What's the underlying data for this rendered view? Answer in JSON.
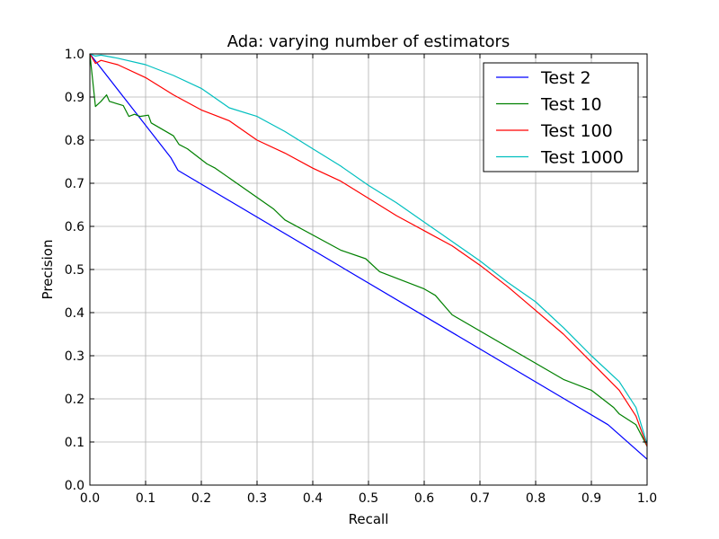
{
  "chart_data": {
    "type": "line",
    "title": "Ada: varying number of estimators",
    "xlabel": "Recall",
    "ylabel": "Precision",
    "xlim": [
      0.0,
      1.0
    ],
    "ylim": [
      0.0,
      1.0
    ],
    "xticks": [
      "0.0",
      "0.1",
      "0.2",
      "0.3",
      "0.4",
      "0.5",
      "0.6",
      "0.7",
      "0.8",
      "0.9",
      "1.0"
    ],
    "yticks": [
      "0.0",
      "0.1",
      "0.2",
      "0.3",
      "0.4",
      "0.5",
      "0.6",
      "0.7",
      "0.8",
      "0.9",
      "1.0"
    ],
    "grid": true,
    "legend_position": "top-right",
    "series": [
      {
        "name": "Test 2",
        "color": "#0000ff",
        "x": [
          0.0,
          0.145,
          0.158,
          0.93,
          1.0
        ],
        "y": [
          1.0,
          0.76,
          0.73,
          0.14,
          0.06
        ]
      },
      {
        "name": "Test 10",
        "color": "#008000",
        "x": [
          0.0,
          0.01,
          0.02,
          0.03,
          0.035,
          0.06,
          0.07,
          0.08,
          0.09,
          0.105,
          0.11,
          0.15,
          0.16,
          0.175,
          0.21,
          0.225,
          0.33,
          0.35,
          0.45,
          0.495,
          0.52,
          0.6,
          0.62,
          0.65,
          0.85,
          0.9,
          0.94,
          0.95,
          0.98,
          1.0
        ],
        "y": [
          1.0,
          0.878,
          0.89,
          0.905,
          0.89,
          0.88,
          0.855,
          0.86,
          0.855,
          0.858,
          0.84,
          0.81,
          0.79,
          0.78,
          0.745,
          0.735,
          0.64,
          0.615,
          0.545,
          0.525,
          0.495,
          0.455,
          0.44,
          0.395,
          0.245,
          0.22,
          0.18,
          0.165,
          0.14,
          0.09
        ]
      },
      {
        "name": "Test 100",
        "color": "#ff0000",
        "x": [
          0.0,
          0.01,
          0.02,
          0.05,
          0.1,
          0.15,
          0.2,
          0.25,
          0.3,
          0.35,
          0.4,
          0.45,
          0.5,
          0.55,
          0.6,
          0.65,
          0.7,
          0.75,
          0.8,
          0.85,
          0.9,
          0.95,
          0.98,
          1.0
        ],
        "y": [
          1.0,
          0.978,
          0.985,
          0.975,
          0.945,
          0.905,
          0.87,
          0.845,
          0.8,
          0.77,
          0.735,
          0.705,
          0.665,
          0.625,
          0.59,
          0.555,
          0.51,
          0.46,
          0.405,
          0.35,
          0.285,
          0.22,
          0.16,
          0.09
        ]
      },
      {
        "name": "Test 1000",
        "color": "#00bfbf",
        "x": [
          0.0,
          0.01,
          0.02,
          0.05,
          0.1,
          0.15,
          0.2,
          0.25,
          0.3,
          0.35,
          0.4,
          0.45,
          0.5,
          0.55,
          0.6,
          0.65,
          0.7,
          0.75,
          0.8,
          0.85,
          0.9,
          0.95,
          0.98,
          1.0
        ],
        "y": [
          1.0,
          0.995,
          0.997,
          0.99,
          0.975,
          0.95,
          0.92,
          0.875,
          0.855,
          0.82,
          0.78,
          0.74,
          0.695,
          0.655,
          0.61,
          0.565,
          0.52,
          0.47,
          0.425,
          0.365,
          0.3,
          0.24,
          0.18,
          0.095
        ]
      }
    ]
  }
}
